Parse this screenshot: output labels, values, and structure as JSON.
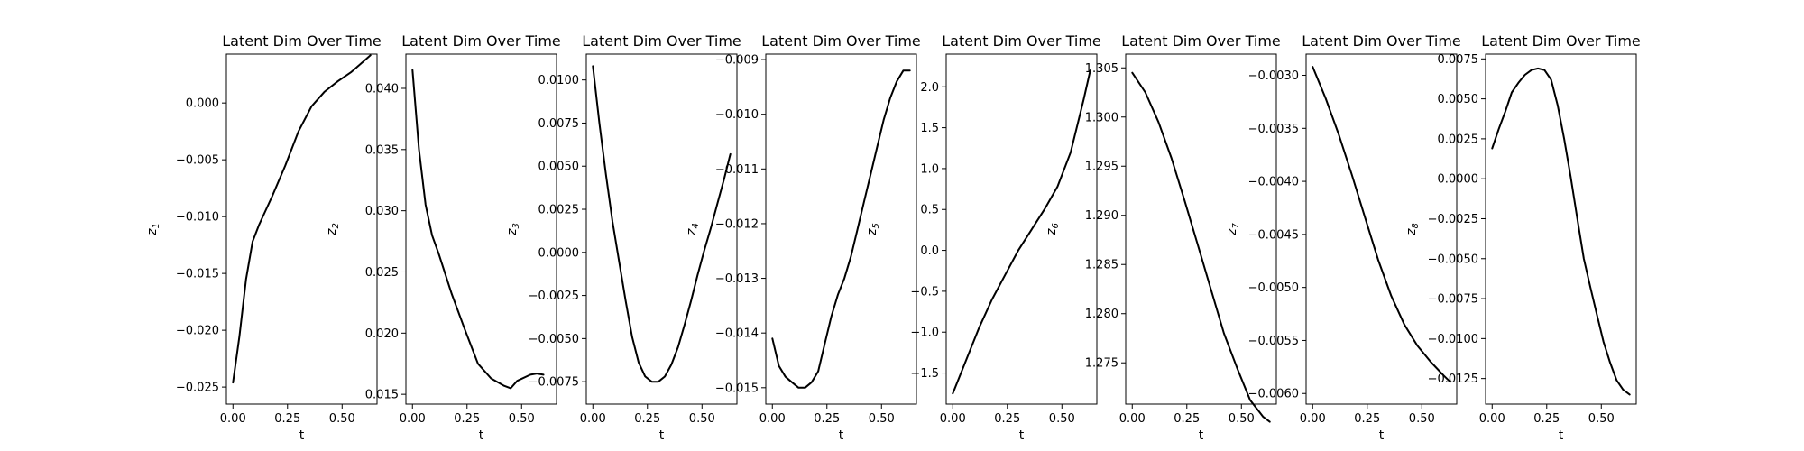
{
  "chart_data": [
    {
      "type": "line",
      "title": "Latent Dim Over Time",
      "xlabel": "t",
      "ylabel": "z",
      "ylabel_sub": "1",
      "xlim": [
        -0.03,
        0.66
      ],
      "ylim": [
        -0.0265,
        0.0043
      ],
      "xticks": [
        0.0,
        0.25,
        0.5
      ],
      "xticklabels": [
        "0.00",
        "0.25",
        "0.50"
      ],
      "yticks": [
        -0.025,
        -0.02,
        -0.015,
        -0.01,
        -0.005,
        0.0
      ],
      "yticklabels": [
        "−0.025",
        "−0.020",
        "−0.015",
        "−0.010",
        "−0.005",
        "0.000"
      ],
      "x": [
        0.0,
        0.03,
        0.06,
        0.09,
        0.12,
        0.18,
        0.24,
        0.3,
        0.36,
        0.42,
        0.48,
        0.54,
        0.6,
        0.63
      ],
      "y": [
        -0.0246,
        -0.0205,
        -0.0155,
        -0.0122,
        -0.0107,
        -0.0082,
        -0.0055,
        -0.0025,
        -0.0003,
        0.001,
        0.0019,
        0.0027,
        0.0037,
        0.0042
      ]
    },
    {
      "type": "line",
      "title": "Latent Dim Over Time",
      "xlabel": "t",
      "ylabel": "z",
      "ylabel_sub": "2",
      "xlim": [
        -0.03,
        0.66
      ],
      "ylim": [
        0.0142,
        0.0428
      ],
      "xticks": [
        0.0,
        0.25,
        0.5
      ],
      "xticklabels": [
        "0.00",
        "0.25",
        "0.50"
      ],
      "yticks": [
        0.015,
        0.02,
        0.025,
        0.03,
        0.035,
        0.04
      ],
      "yticklabels": [
        "0.015",
        "0.020",
        "0.025",
        "0.030",
        "0.035",
        "0.040"
      ],
      "x": [
        0.0,
        0.03,
        0.06,
        0.09,
        0.12,
        0.18,
        0.24,
        0.3,
        0.36,
        0.42,
        0.45,
        0.48,
        0.54,
        0.57,
        0.6
      ],
      "y": [
        0.0415,
        0.035,
        0.0305,
        0.028,
        0.0265,
        0.0232,
        0.0203,
        0.0175,
        0.0163,
        0.0157,
        0.0155,
        0.0161,
        0.0166,
        0.0167,
        0.0166
      ]
    },
    {
      "type": "line",
      "title": "Latent Dim Over Time",
      "xlabel": "t",
      "ylabel": "z",
      "ylabel_sub": "3",
      "xlim": [
        -0.03,
        0.66
      ],
      "ylim": [
        -0.0088,
        0.0115
      ],
      "xticks": [
        0.0,
        0.25,
        0.5
      ],
      "xticklabels": [
        "0.00",
        "0.25",
        "0.50"
      ],
      "yticks": [
        -0.0075,
        -0.005,
        -0.0025,
        0.0,
        0.0025,
        0.005,
        0.0075,
        0.01
      ],
      "yticklabels": [
        "−0.0075",
        "−0.0050",
        "−0.0025",
        "0.0000",
        "0.0025",
        "0.0050",
        "0.0075",
        "0.0100"
      ],
      "x": [
        0.0,
        0.03,
        0.06,
        0.09,
        0.12,
        0.15,
        0.18,
        0.21,
        0.24,
        0.27,
        0.3,
        0.33,
        0.36,
        0.39,
        0.42,
        0.45,
        0.48,
        0.51,
        0.54,
        0.57,
        0.6,
        0.63
      ],
      "y": [
        0.0108,
        0.0075,
        0.0045,
        0.0018,
        -0.0005,
        -0.0028,
        -0.0049,
        -0.0064,
        -0.0072,
        -0.0075,
        -0.0075,
        -0.0072,
        -0.0065,
        -0.0055,
        -0.0042,
        -0.0028,
        -0.0013,
        0.0001,
        0.0014,
        0.0028,
        0.0042,
        0.0057
      ]
    },
    {
      "type": "line",
      "title": "Latent Dim Over Time",
      "xlabel": "t",
      "ylabel": "z",
      "ylabel_sub": "4",
      "xlim": [
        -0.03,
        0.66
      ],
      "ylim": [
        -0.0153,
        -0.0089
      ],
      "xticks": [
        0.0,
        0.25,
        0.5
      ],
      "xticklabels": [
        "0.00",
        "0.25",
        "0.50"
      ],
      "yticks": [
        -0.015,
        -0.014,
        -0.013,
        -0.012,
        -0.011,
        -0.01,
        -0.009
      ],
      "yticklabels": [
        "−0.015",
        "−0.014",
        "−0.013",
        "−0.012",
        "−0.011",
        "−0.010",
        "−0.009"
      ],
      "x": [
        0.0,
        0.03,
        0.06,
        0.09,
        0.12,
        0.15,
        0.18,
        0.21,
        0.24,
        0.27,
        0.3,
        0.33,
        0.36,
        0.39,
        0.42,
        0.45,
        0.48,
        0.51,
        0.54,
        0.57,
        0.6,
        0.63
      ],
      "y": [
        -0.0141,
        -0.0146,
        -0.0148,
        -0.0149,
        -0.015,
        -0.015,
        -0.0149,
        -0.0147,
        -0.0142,
        -0.0137,
        -0.0133,
        -0.013,
        -0.0126,
        -0.0121,
        -0.0116,
        -0.0111,
        -0.0106,
        -0.0101,
        -0.0097,
        -0.0094,
        -0.0092,
        -0.0092
      ]
    },
    {
      "type": "line",
      "title": "Latent Dim Over Time",
      "xlabel": "t",
      "ylabel": "z",
      "ylabel_sub": "5",
      "xlim": [
        -0.03,
        0.66
      ],
      "ylim": [
        -1.88,
        2.4
      ],
      "xticks": [
        0.0,
        0.25,
        0.5
      ],
      "xticklabels": [
        "0.00",
        "0.25",
        "0.50"
      ],
      "yticks": [
        -1.5,
        -1.0,
        -0.5,
        0.0,
        0.5,
        1.0,
        1.5,
        2.0
      ],
      "yticklabels": [
        "−1.5",
        "−1.0",
        "−0.5",
        "0.0",
        "0.5",
        "1.0",
        "1.5",
        "2.0"
      ],
      "x": [
        0.0,
        0.06,
        0.12,
        0.18,
        0.24,
        0.3,
        0.36,
        0.42,
        0.48,
        0.54,
        0.6,
        0.63
      ],
      "y": [
        -1.75,
        -1.35,
        -0.95,
        -0.6,
        -0.3,
        0.0,
        0.25,
        0.5,
        0.78,
        1.2,
        1.85,
        2.2
      ]
    },
    {
      "type": "line",
      "title": "Latent Dim Over Time",
      "xlabel": "t",
      "ylabel": "z",
      "ylabel_sub": "6",
      "xlim": [
        -0.03,
        0.66
      ],
      "ylim": [
        1.2708,
        1.3064
      ],
      "xticks": [
        0.0,
        0.25,
        0.5
      ],
      "xticklabels": [
        "0.00",
        "0.25",
        "0.50"
      ],
      "yticks": [
        1.275,
        1.28,
        1.285,
        1.29,
        1.295,
        1.3,
        1.305
      ],
      "yticklabels": [
        "1.275",
        "1.280",
        "1.285",
        "1.290",
        "1.295",
        "1.300",
        "1.305"
      ],
      "x": [
        0.0,
        0.06,
        0.12,
        0.18,
        0.24,
        0.3,
        0.36,
        0.42,
        0.48,
        0.54,
        0.6,
        0.63
      ],
      "y": [
        1.3045,
        1.3025,
        1.2995,
        1.2958,
        1.2915,
        1.287,
        1.2825,
        1.278,
        1.2745,
        1.2712,
        1.2695,
        1.269
      ]
    },
    {
      "type": "line",
      "title": "Latent Dim Over Time",
      "xlabel": "t",
      "ylabel": "z",
      "ylabel_sub": "7",
      "xlim": [
        -0.03,
        0.66
      ],
      "ylim": [
        -0.0061,
        -0.0028
      ],
      "xticks": [
        0.0,
        0.25,
        0.5
      ],
      "xticklabels": [
        "0.00",
        "0.25",
        "0.50"
      ],
      "yticks": [
        -0.006,
        -0.0055,
        -0.005,
        -0.0045,
        -0.004,
        -0.0035,
        -0.003
      ],
      "yticklabels": [
        "−0.0060",
        "−0.0055",
        "−0.0050",
        "−0.0045",
        "−0.0040",
        "−0.0035",
        "−0.0030"
      ],
      "x": [
        0.0,
        0.06,
        0.12,
        0.18,
        0.24,
        0.3,
        0.36,
        0.42,
        0.48,
        0.54,
        0.6,
        0.63
      ],
      "y": [
        -0.00292,
        -0.00322,
        -0.00356,
        -0.00394,
        -0.00434,
        -0.00474,
        -0.00508,
        -0.00535,
        -0.00555,
        -0.0057,
        -0.00583,
        -0.00589
      ]
    },
    {
      "type": "line",
      "title": "Latent Dim Over Time",
      "xlabel": "t",
      "ylabel": "z",
      "ylabel_sub": "8",
      "xlim": [
        -0.03,
        0.66
      ],
      "ylim": [
        -0.0141,
        0.0078
      ],
      "xticks": [
        0.0,
        0.25,
        0.5
      ],
      "xticklabels": [
        "0.00",
        "0.25",
        "0.50"
      ],
      "yticks": [
        -0.0125,
        -0.01,
        -0.0075,
        -0.005,
        -0.0025,
        0.0,
        0.0025,
        0.005,
        0.0075
      ],
      "yticklabels": [
        "−0.0125",
        "−0.0100",
        "−0.0075",
        "−0.0050",
        "−0.0025",
        "0.0000",
        "0.0025",
        "0.0050",
        "0.0075"
      ],
      "x": [
        0.0,
        0.03,
        0.06,
        0.09,
        0.12,
        0.15,
        0.18,
        0.21,
        0.24,
        0.27,
        0.3,
        0.33,
        0.36,
        0.39,
        0.42,
        0.45,
        0.48,
        0.51,
        0.54,
        0.57,
        0.6,
        0.63
      ],
      "y": [
        0.0019,
        0.0031,
        0.0042,
        0.0054,
        0.006,
        0.0065,
        0.0068,
        0.0069,
        0.0068,
        0.0062,
        0.0046,
        0.0025,
        0.0001,
        -0.0025,
        -0.005,
        -0.0068,
        -0.0085,
        -0.0102,
        -0.0115,
        -0.0126,
        -0.0132,
        -0.0135
      ]
    }
  ]
}
